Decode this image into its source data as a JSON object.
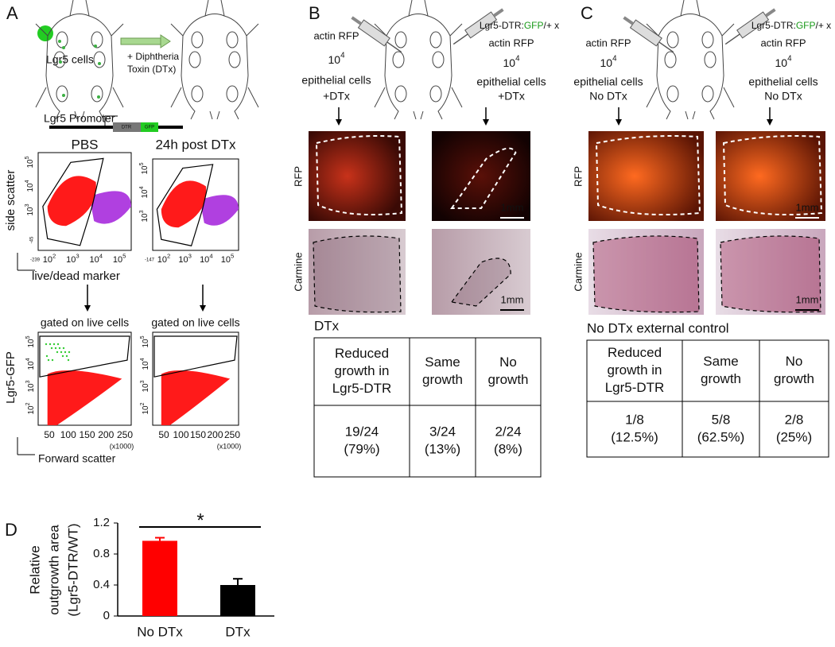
{
  "panel_a": {
    "label": "A",
    "legend": "Lgr5 cells",
    "treatment": [
      "+ Diphtheria",
      "Toxin (DTx)"
    ],
    "promoter": "Lgr5 Promoter",
    "construct": [
      "DTR",
      "GFP"
    ],
    "flow_top": {
      "titles": [
        "PBS",
        "24h post DTx"
      ],
      "ylabel": "side scatter",
      "xlabel": "live/dead marker",
      "xticks": [
        {
          "base": "10",
          "exp": "2"
        },
        {
          "base": "10",
          "exp": "3"
        },
        {
          "base": "10",
          "exp": "4"
        },
        {
          "base": "10",
          "exp": "5"
        }
      ],
      "x_neg": [
        "-239",
        "-147"
      ],
      "yticks": [
        {
          "base": "10",
          "exp": "5"
        },
        {
          "base": "10",
          "exp": "4"
        },
        {
          "base": "10",
          "exp": "3"
        }
      ],
      "y_neg": "-45"
    },
    "flow_bottom": {
      "titles": [
        "gated on live cells",
        "gated on live cells"
      ],
      "ylabel": "Lgr5-GFP",
      "xlabel": "Forward scatter",
      "xticks": [
        "50",
        "100",
        "150",
        "200",
        "250"
      ],
      "unit": "(x1000)",
      "yticks": [
        {
          "base": "10",
          "exp": "5"
        },
        {
          "base": "10",
          "exp": "4"
        },
        {
          "base": "10",
          "exp": "3"
        },
        {
          "base": "10",
          "exp": "2"
        }
      ]
    }
  },
  "panel_b": {
    "label": "B",
    "left": {
      "donor": "actin RFP",
      "dose_base": "10",
      "dose_exp": "4",
      "cells": "epithelial cells",
      "treatment": "+DTx"
    },
    "right": {
      "host": [
        "Lgr5-DTR:",
        "GFP",
        "/+ x"
      ],
      "donor": "actin RFP",
      "dose_base": "10",
      "dose_exp": "4",
      "cells": "epithelial cells",
      "treatment": "+DTx"
    },
    "row_labels": [
      "RFP",
      "Carmine"
    ],
    "scale_bars": [
      "1mm",
      "1mm"
    ],
    "table": {
      "title": "DTx",
      "header": [
        [
          "Reduced",
          "growth in",
          "Lgr5-DTR"
        ],
        [
          "Same",
          "growth"
        ],
        [
          "No",
          "growth"
        ]
      ],
      "row": [
        [
          "19/24",
          "(79%)"
        ],
        [
          "3/24",
          "(13%)"
        ],
        [
          "2/24",
          "(8%)"
        ]
      ]
    }
  },
  "panel_c": {
    "label": "C",
    "left": {
      "donor": "actin RFP",
      "dose_base": "10",
      "dose_exp": "4",
      "cells": "epithelial cells",
      "treatment": "No DTx"
    },
    "right": {
      "host": [
        "Lgr5-DTR:",
        "GFP",
        "/+ x"
      ],
      "donor": "actin RFP",
      "dose_base": "10",
      "dose_exp": "4",
      "cells": "epithelial cells",
      "treatment": "No DTx"
    },
    "row_labels": [
      "RFP",
      "Carmine"
    ],
    "scale_bars": [
      "1mm",
      "1mm"
    ],
    "table": {
      "title": "No DTx external control",
      "header": [
        [
          "Reduced",
          "growth in",
          "Lgr5-DTR"
        ],
        [
          "Same",
          "growth"
        ],
        [
          "No",
          "growth"
        ]
      ],
      "row": [
        [
          "1/8",
          "(12.5%)"
        ],
        [
          "5/8",
          "(62.5%)"
        ],
        [
          "2/8",
          "(25%)"
        ]
      ]
    }
  },
  "chart_data": {
    "type": "bar",
    "panel_label": "D",
    "ylabel": [
      "Relative",
      "outgrowth area",
      "(Lgr5-DTR/WT)"
    ],
    "categories": [
      "No DTx",
      "DTx"
    ],
    "values": [
      0.97,
      0.4
    ],
    "errors": [
      0.04,
      0.08
    ],
    "colors": [
      "#ff0000",
      "#000000"
    ],
    "ylim": [
      0,
      1.2
    ],
    "yticks": [
      0,
      0.4,
      0.8,
      1.2
    ],
    "annotation": "*"
  }
}
